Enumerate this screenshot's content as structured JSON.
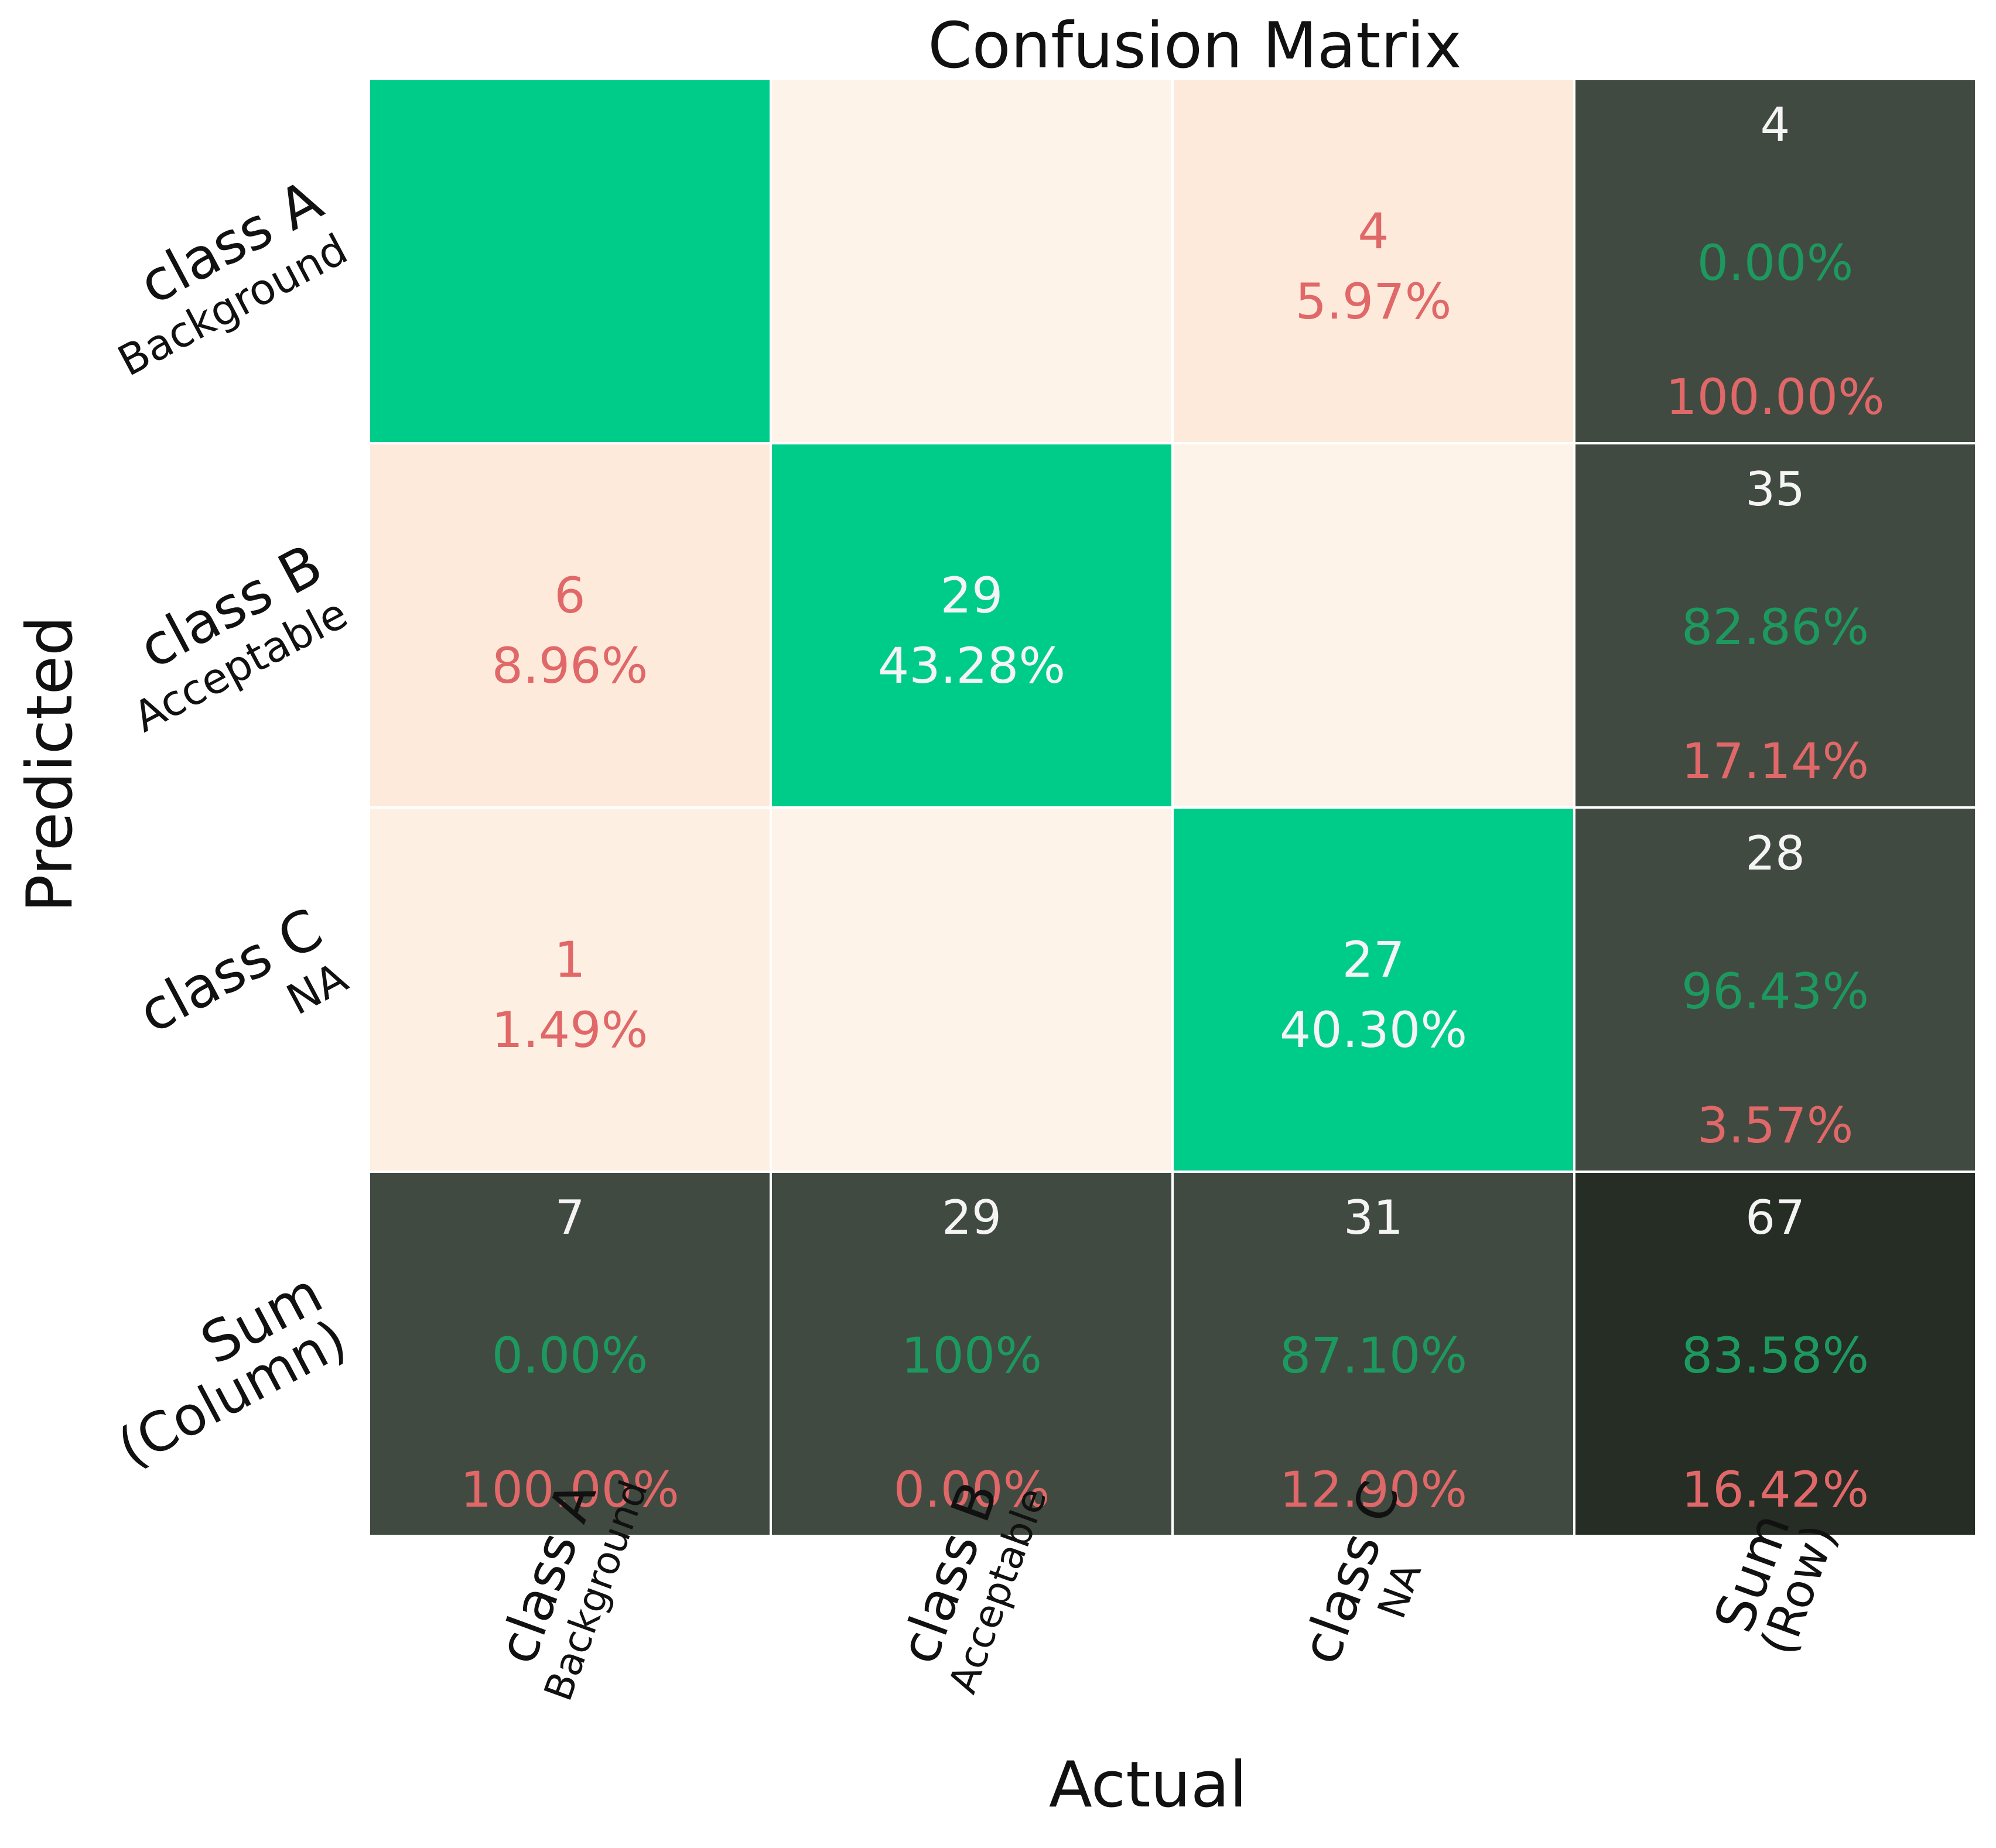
{
  "chart_data": {
    "type": "heatmap",
    "title": "Confusion Matrix",
    "xlabel": "Actual",
    "ylabel": "Predicted",
    "columns": [
      {
        "main": "class A",
        "sub": "Background"
      },
      {
        "main": "class B",
        "sub": "Acceptable"
      },
      {
        "main": "class C",
        "sub": "NA"
      },
      {
        "main": "Sum",
        "sub": "(Row)"
      }
    ],
    "rows": [
      {
        "main": "class A",
        "sub": "Background"
      },
      {
        "main": "class B",
        "sub": "Acceptable"
      },
      {
        "main": "class C",
        "sub": "NA"
      },
      {
        "main": "Sum",
        "sub": "(Column)"
      }
    ],
    "counts": [
      [
        null,
        null,
        4
      ],
      [
        6,
        29,
        null
      ],
      [
        1,
        null,
        27
      ]
    ],
    "percentages": [
      [
        null,
        null,
        "5.97%"
      ],
      [
        "8.96%",
        "43.28%",
        null
      ],
      [
        "1.49%",
        null,
        "40.30%"
      ]
    ],
    "row_sums": [
      {
        "total": "4",
        "correct": "0.00%",
        "error": "100.00%"
      },
      {
        "total": "35",
        "correct": "82.86%",
        "error": "17.14%"
      },
      {
        "total": "28",
        "correct": "96.43%",
        "error": "3.57%"
      }
    ],
    "column_sums": [
      {
        "total": "7",
        "correct": "0.00%",
        "error": "100.00%"
      },
      {
        "total": "29",
        "correct": "100%",
        "error": "0.00%"
      },
      {
        "total": "31",
        "correct": "87.10%",
        "error": "12.90%"
      }
    ],
    "overall": {
      "total": "67",
      "correct": "83.58%",
      "error": "16.42%"
    }
  },
  "colors": {
    "diagonal": "#00cc8a",
    "off_diagonal_low": "#fdf3e9",
    "off_diagonal_tint": "#fdeadb",
    "sum_cell": "#414a41",
    "overall_cell": "#252d25",
    "error_text": "#e06868",
    "correct_text": "#1d9960",
    "light_text": "#f4f4f4",
    "axis_text": "#111111"
  }
}
